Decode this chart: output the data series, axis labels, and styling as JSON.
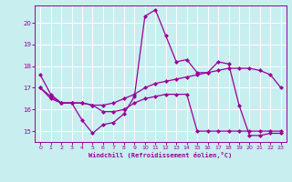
{
  "xlabel": "Windchill (Refroidissement éolien,°C)",
  "background_color": "#c8eef0",
  "line_color": "#990099",
  "grid_color": "#ffffff",
  "xlim": [
    -0.5,
    23.5
  ],
  "ylim": [
    14.5,
    20.8
  ],
  "x_ticks": [
    0,
    1,
    2,
    3,
    4,
    5,
    6,
    7,
    8,
    9,
    10,
    11,
    12,
    13,
    14,
    15,
    16,
    17,
    18,
    19,
    20,
    21,
    22,
    23
  ],
  "y_ticks": [
    15,
    16,
    17,
    18,
    19,
    20
  ],
  "series1_x": [
    0,
    1,
    2,
    3,
    4,
    5,
    6,
    7,
    8,
    9,
    10,
    11,
    12,
    13,
    14,
    15,
    16,
    17,
    18,
    19,
    20,
    21,
    22,
    23
  ],
  "series1_y": [
    17.6,
    16.7,
    16.3,
    16.3,
    15.5,
    14.9,
    15.3,
    15.4,
    15.8,
    16.6,
    20.3,
    20.6,
    19.4,
    18.2,
    18.3,
    17.7,
    17.7,
    18.2,
    18.1,
    16.2,
    14.8,
    14.8,
    14.9,
    14.9
  ],
  "series2_x": [
    0,
    1,
    2,
    3,
    4,
    5,
    6,
    7,
    8,
    9,
    10,
    11,
    12,
    13,
    14,
    15,
    16,
    17,
    18,
    19,
    20,
    21,
    22,
    23
  ],
  "series2_y": [
    17.0,
    16.6,
    16.3,
    16.3,
    16.3,
    16.2,
    16.2,
    16.3,
    16.5,
    16.7,
    17.0,
    17.2,
    17.3,
    17.4,
    17.5,
    17.6,
    17.7,
    17.8,
    17.9,
    17.9,
    17.9,
    17.8,
    17.6,
    17.0
  ],
  "series3_x": [
    0,
    1,
    2,
    3,
    4,
    5,
    6,
    7,
    8,
    9,
    10,
    11,
    12,
    13,
    14,
    15,
    16,
    17,
    18,
    19,
    20,
    21,
    22,
    23
  ],
  "series3_y": [
    17.0,
    16.5,
    16.3,
    16.3,
    16.3,
    16.2,
    15.9,
    15.9,
    16.0,
    16.3,
    16.5,
    16.6,
    16.7,
    16.7,
    16.7,
    15.0,
    15.0,
    15.0,
    15.0,
    15.0,
    15.0,
    15.0,
    15.0,
    15.0
  ]
}
